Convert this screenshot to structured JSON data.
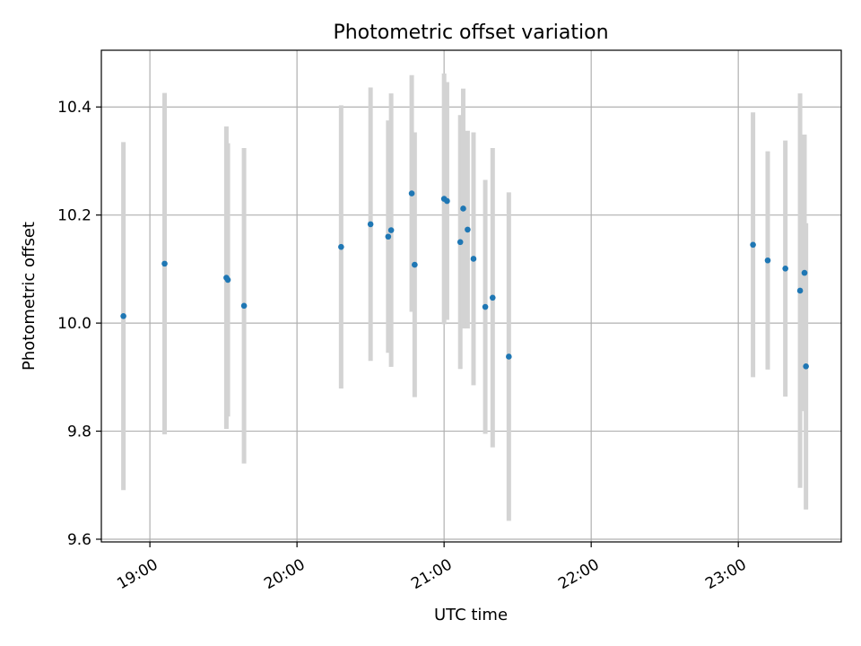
{
  "chart_data": {
    "type": "scatter",
    "title": "Photometric offset variation",
    "xlabel": "UTC time",
    "ylabel": "Photometric offset",
    "x_unit": "hours (UTC)",
    "xlim": [
      18.67,
      23.7
    ],
    "ylim": [
      9.595,
      10.505
    ],
    "grid": true,
    "x_ticks": [
      {
        "value": 19,
        "label": "19:00"
      },
      {
        "value": 20,
        "label": "20:00"
      },
      {
        "value": 21,
        "label": "21:00"
      },
      {
        "value": 22,
        "label": "22:00"
      },
      {
        "value": 23,
        "label": "23:00"
      }
    ],
    "y_ticks": [
      {
        "value": 9.6,
        "label": "9.6"
      },
      {
        "value": 9.8,
        "label": "9.8"
      },
      {
        "value": 10.0,
        "label": "10.0"
      },
      {
        "value": 10.2,
        "label": "10.2"
      },
      {
        "value": 10.4,
        "label": "10.4"
      }
    ],
    "colors": {
      "marker": "#1f77b4",
      "errorbar": "#d3d3d3"
    },
    "points": [
      {
        "x": 18.82,
        "y": 10.013,
        "err": 0.322
      },
      {
        "x": 19.1,
        "y": 10.11,
        "err": 0.316
      },
      {
        "x": 19.52,
        "y": 10.084,
        "err": 0.28
      },
      {
        "x": 19.53,
        "y": 10.08,
        "err": 0.253
      },
      {
        "x": 19.64,
        "y": 10.032,
        "err": 0.292
      },
      {
        "x": 20.3,
        "y": 10.141,
        "err": 0.262
      },
      {
        "x": 20.5,
        "y": 10.183,
        "err": 0.253
      },
      {
        "x": 20.62,
        "y": 10.16,
        "err": 0.215
      },
      {
        "x": 20.64,
        "y": 10.172,
        "err": 0.253
      },
      {
        "x": 20.78,
        "y": 10.24,
        "err": 0.219
      },
      {
        "x": 20.8,
        "y": 10.108,
        "err": 0.245
      },
      {
        "x": 21.0,
        "y": 10.23,
        "err": 0.232
      },
      {
        "x": 21.02,
        "y": 10.226,
        "err": 0.22
      },
      {
        "x": 21.11,
        "y": 10.15,
        "err": 0.235
      },
      {
        "x": 21.13,
        "y": 10.212,
        "err": 0.222
      },
      {
        "x": 21.16,
        "y": 10.173,
        "err": 0.183
      },
      {
        "x": 21.2,
        "y": 10.119,
        "err": 0.234
      },
      {
        "x": 21.28,
        "y": 10.03,
        "err": 0.235
      },
      {
        "x": 21.33,
        "y": 10.047,
        "err": 0.277
      },
      {
        "x": 21.44,
        "y": 9.938,
        "err": 0.304
      },
      {
        "x": 23.1,
        "y": 10.145,
        "err": 0.245
      },
      {
        "x": 23.2,
        "y": 10.116,
        "err": 0.202
      },
      {
        "x": 23.32,
        "y": 10.101,
        "err": 0.237
      },
      {
        "x": 23.42,
        "y": 10.06,
        "err": 0.365
      },
      {
        "x": 23.45,
        "y": 10.093,
        "err": 0.256
      },
      {
        "x": 23.46,
        "y": 9.92,
        "err": 0.265
      }
    ]
  }
}
